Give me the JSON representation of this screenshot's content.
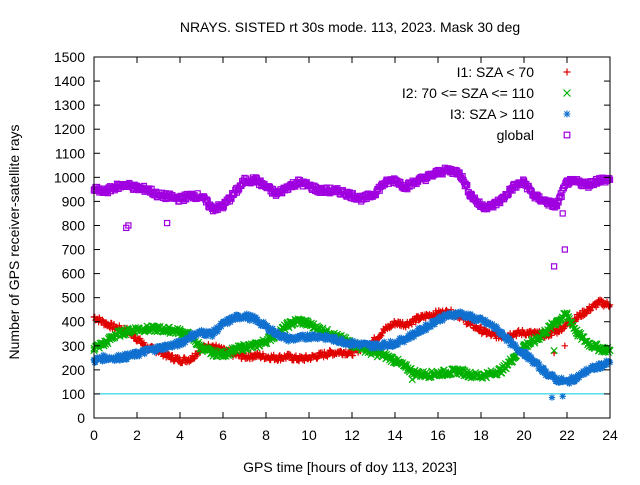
{
  "chart_data": {
    "type": "scatter",
    "title": "NRAYS. SISTED rt 30s mode. 113, 2023. Mask 30 deg",
    "xlabel": "GPS time [hours of doy 113, 2023]",
    "ylabel": "Number of GPS receiver-satellite rays",
    "xlim": [
      0,
      24
    ],
    "ylim": [
      0,
      1500
    ],
    "xticks": [
      0,
      2,
      4,
      6,
      8,
      10,
      12,
      14,
      16,
      18,
      20,
      22,
      24
    ],
    "yticks": [
      0,
      100,
      200,
      300,
      400,
      500,
      600,
      700,
      800,
      900,
      1000,
      1100,
      1200,
      1300,
      1400,
      1500
    ],
    "reference_line": {
      "y": 100,
      "color": "#00c8e0"
    },
    "legend_position": "top-right",
    "series": [
      {
        "name": "I1: SZA < 70",
        "marker": "+",
        "color": "#e00000",
        "x": [
          0,
          0.5,
          1,
          1.5,
          2,
          2.5,
          3,
          3.5,
          4,
          4.5,
          5,
          5.5,
          6,
          6.5,
          7,
          7.5,
          8,
          8.5,
          9,
          9.5,
          10,
          10.5,
          11,
          11.5,
          12,
          12.5,
          13,
          13.5,
          14,
          14.5,
          15,
          15.5,
          16,
          16.5,
          17,
          17.5,
          18,
          18.5,
          19,
          19.5,
          20,
          20.5,
          21,
          21.5,
          22,
          22.5,
          23,
          23.5,
          24
        ],
        "y": [
          420,
          395,
          375,
          365,
          330,
          290,
          280,
          255,
          240,
          245,
          290,
          300,
          280,
          265,
          255,
          260,
          255,
          250,
          255,
          245,
          250,
          260,
          270,
          275,
          270,
          295,
          320,
          365,
          395,
          390,
          410,
          425,
          435,
          440,
          425,
          390,
          365,
          345,
          340,
          350,
          355,
          350,
          345,
          360,
          390,
          420,
          450,
          480,
          470
        ],
        "outliers": [
          [
            21.4,
            270
          ],
          [
            21.9,
            300
          ]
        ]
      },
      {
        "name": "I2: 70 <= SZA <= 110",
        "marker": "x",
        "color": "#00b000",
        "x": [
          0,
          0.5,
          1,
          1.5,
          2,
          2.5,
          3,
          3.5,
          4,
          4.5,
          5,
          5.5,
          6,
          6.5,
          7,
          7.5,
          8,
          8.5,
          9,
          9.5,
          10,
          10.5,
          11,
          11.5,
          12,
          12.5,
          13,
          13.5,
          14,
          14.5,
          15,
          15.5,
          16,
          16.5,
          17,
          17.5,
          18,
          18.5,
          19,
          19.5,
          20,
          20.5,
          21,
          21.5,
          22,
          22.5,
          23,
          23.5,
          24
        ],
        "y": [
          290,
          310,
          345,
          360,
          370,
          370,
          370,
          365,
          360,
          340,
          290,
          270,
          265,
          280,
          295,
          300,
          320,
          350,
          385,
          405,
          390,
          370,
          350,
          330,
          310,
          290,
          270,
          260,
          240,
          210,
          185,
          180,
          185,
          190,
          195,
          180,
          175,
          185,
          200,
          250,
          300,
          320,
          360,
          400,
          430,
          350,
          310,
          290,
          280
        ],
        "outliers": [
          [
            14.8,
            160
          ],
          [
            21.4,
            280
          ]
        ]
      },
      {
        "name": "I3: SZA > 110",
        "marker": "*",
        "color": "#1070d0",
        "x": [
          0,
          0.5,
          1,
          1.5,
          2,
          2.5,
          3,
          3.5,
          4,
          4.5,
          5,
          5.5,
          6,
          6.5,
          7,
          7.5,
          8,
          8.5,
          9,
          9.5,
          10,
          10.5,
          11,
          11.5,
          12,
          12.5,
          13,
          13.5,
          14,
          14.5,
          15,
          15.5,
          16,
          16.5,
          17,
          17.5,
          18,
          18.5,
          19,
          19.5,
          20,
          20.5,
          21,
          21.5,
          22,
          22.5,
          23,
          23.5,
          24
        ],
        "y": [
          240,
          250,
          250,
          255,
          265,
          280,
          290,
          300,
          310,
          340,
          355,
          350,
          390,
          415,
          425,
          410,
          380,
          350,
          330,
          330,
          340,
          340,
          330,
          320,
          310,
          305,
          300,
          305,
          310,
          330,
          355,
          380,
          410,
          425,
          435,
          420,
          405,
          385,
          350,
          300,
          270,
          230,
          190,
          160,
          150,
          170,
          200,
          215,
          230
        ],
        "outliers": [
          [
            21.3,
            85
          ],
          [
            21.8,
            90
          ]
        ]
      },
      {
        "name": "global",
        "marker": "square",
        "color": "#a000e0",
        "x": [
          0,
          0.5,
          1,
          1.5,
          2,
          2.5,
          3,
          3.5,
          4,
          4.5,
          5,
          5.5,
          6,
          6.5,
          7,
          7.5,
          8,
          8.5,
          9,
          9.5,
          10,
          10.5,
          11,
          11.5,
          12,
          12.5,
          13,
          13.5,
          14,
          14.5,
          15,
          15.5,
          16,
          16.5,
          17,
          17.5,
          18,
          18.5,
          19,
          19.5,
          20,
          20.5,
          21,
          21.5,
          22,
          22.5,
          23,
          23.5,
          24
        ],
        "y": [
          950,
          940,
          960,
          970,
          955,
          950,
          925,
          920,
          910,
          925,
          920,
          870,
          880,
          930,
          985,
          990,
          960,
          930,
          960,
          980,
          965,
          945,
          945,
          940,
          925,
          910,
          930,
          975,
          990,
          960,
          985,
          1000,
          1020,
          1030,
          1020,
          930,
          880,
          880,
          910,
          960,
          980,
          920,
          900,
          880,
          980,
          980,
          970,
          990,
          990
        ],
        "outliers": [
          [
            1.5,
            790
          ],
          [
            1.6,
            800
          ],
          [
            3.4,
            810
          ],
          [
            21.4,
            630
          ],
          [
            21.9,
            700
          ],
          [
            21.8,
            850
          ]
        ]
      }
    ]
  }
}
